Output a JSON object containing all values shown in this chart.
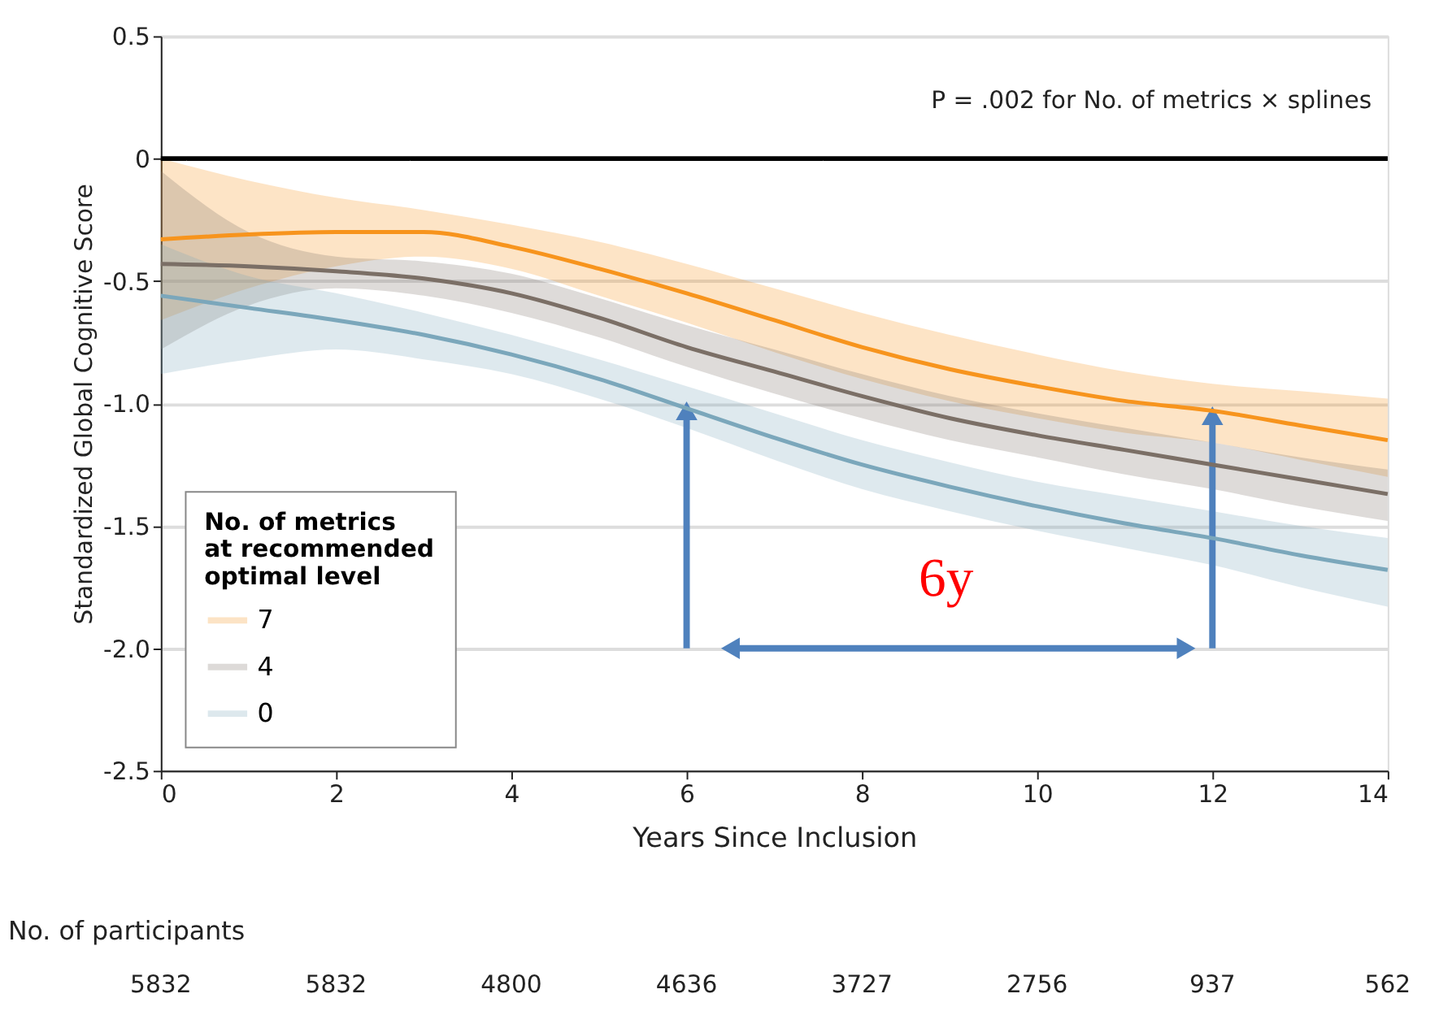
{
  "chart_data": {
    "type": "line",
    "xlabel": "Years Since Inclusion",
    "ylabel": "Standardized Global Cognitive Score",
    "legend_title": "No. of metrics\nat recommended\noptimal level",
    "legend": "bottom left",
    "grid": "y",
    "marker": "none",
    "line_style": "solid",
    "x": [
      0,
      1,
      2,
      3,
      4,
      5,
      6,
      7,
      8,
      9,
      10,
      11,
      12,
      13,
      14
    ],
    "xlim": [
      0,
      14
    ],
    "xticks": [
      0,
      2,
      4,
      6,
      8,
      10,
      12,
      14
    ],
    "ylim": [
      -2.5,
      0.5
    ],
    "yticks": [
      0.5,
      0,
      {
        "value": -0.5,
        "label": "-0.5"
      },
      {
        "value": -1,
        "label": "-1.0"
      },
      {
        "value": -1.5,
        "label": "-1.5"
      },
      {
        "value": -2,
        "label": "-2.0"
      },
      {
        "value": -2.5,
        "label": "-2.5"
      }
    ],
    "series": [
      {
        "name": "7",
        "color": "#f7941d",
        "values": [
          -0.33,
          -0.31,
          -0.3,
          -0.3,
          -0.36,
          -0.45,
          -0.55,
          -0.66,
          -0.77,
          -0.86,
          -0.93,
          -0.99,
          -1.03,
          -1.09,
          -1.15
        ],
        "upper": [
          0.0,
          -0.09,
          -0.16,
          -0.21,
          -0.27,
          -0.34,
          -0.43,
          -0.53,
          -0.63,
          -0.72,
          -0.8,
          -0.87,
          -0.92,
          -0.95,
          -0.98
        ],
        "lower": [
          -0.66,
          -0.53,
          -0.44,
          -0.4,
          -0.45,
          -0.56,
          -0.67,
          -0.79,
          -0.9,
          -0.99,
          -1.06,
          -1.12,
          -1.16,
          -1.23,
          -1.3
        ]
      },
      {
        "name": "4",
        "color": "#7b6f66",
        "values": [
          -0.43,
          -0.44,
          -0.46,
          -0.49,
          -0.55,
          -0.65,
          -0.77,
          -0.87,
          -0.97,
          -1.06,
          -1.13,
          -1.19,
          -1.25,
          -1.31,
          -1.37
        ],
        "upper": [
          -0.05,
          -0.3,
          -0.4,
          -0.42,
          -0.47,
          -0.57,
          -0.68,
          -0.78,
          -0.88,
          -0.97,
          -1.04,
          -1.1,
          -1.16,
          -1.22,
          -1.27
        ],
        "lower": [
          -0.78,
          -0.6,
          -0.53,
          -0.56,
          -0.63,
          -0.73,
          -0.85,
          -0.96,
          -1.06,
          -1.15,
          -1.22,
          -1.29,
          -1.35,
          -1.42,
          -1.48
        ]
      },
      {
        "name": "0",
        "color": "#7ba7bb",
        "values": [
          -0.56,
          -0.61,
          -0.66,
          -0.72,
          -0.8,
          -0.9,
          -1.02,
          -1.14,
          -1.25,
          -1.34,
          -1.42,
          -1.49,
          -1.55,
          -1.62,
          -1.68
        ],
        "upper": [
          -0.35,
          -0.48,
          -0.55,
          -0.63,
          -0.72,
          -0.82,
          -0.93,
          -1.04,
          -1.15,
          -1.24,
          -1.32,
          -1.38,
          -1.44,
          -1.5,
          -1.55
        ],
        "lower": [
          -0.88,
          -0.82,
          -0.78,
          -0.82,
          -0.88,
          -0.98,
          -1.1,
          -1.23,
          -1.35,
          -1.44,
          -1.52,
          -1.59,
          -1.66,
          -1.75,
          -1.83
        ]
      }
    ],
    "ref_lines": [
      {
        "axis": "y",
        "value": 0,
        "color": "#000000"
      }
    ],
    "annotations": [
      "P = .002 for No. of metrics × splines",
      "6y",
      "No. of participants",
      "5832",
      "5832",
      "4800",
      "4636",
      "3727",
      "2756",
      "937",
      "562"
    ]
  }
}
